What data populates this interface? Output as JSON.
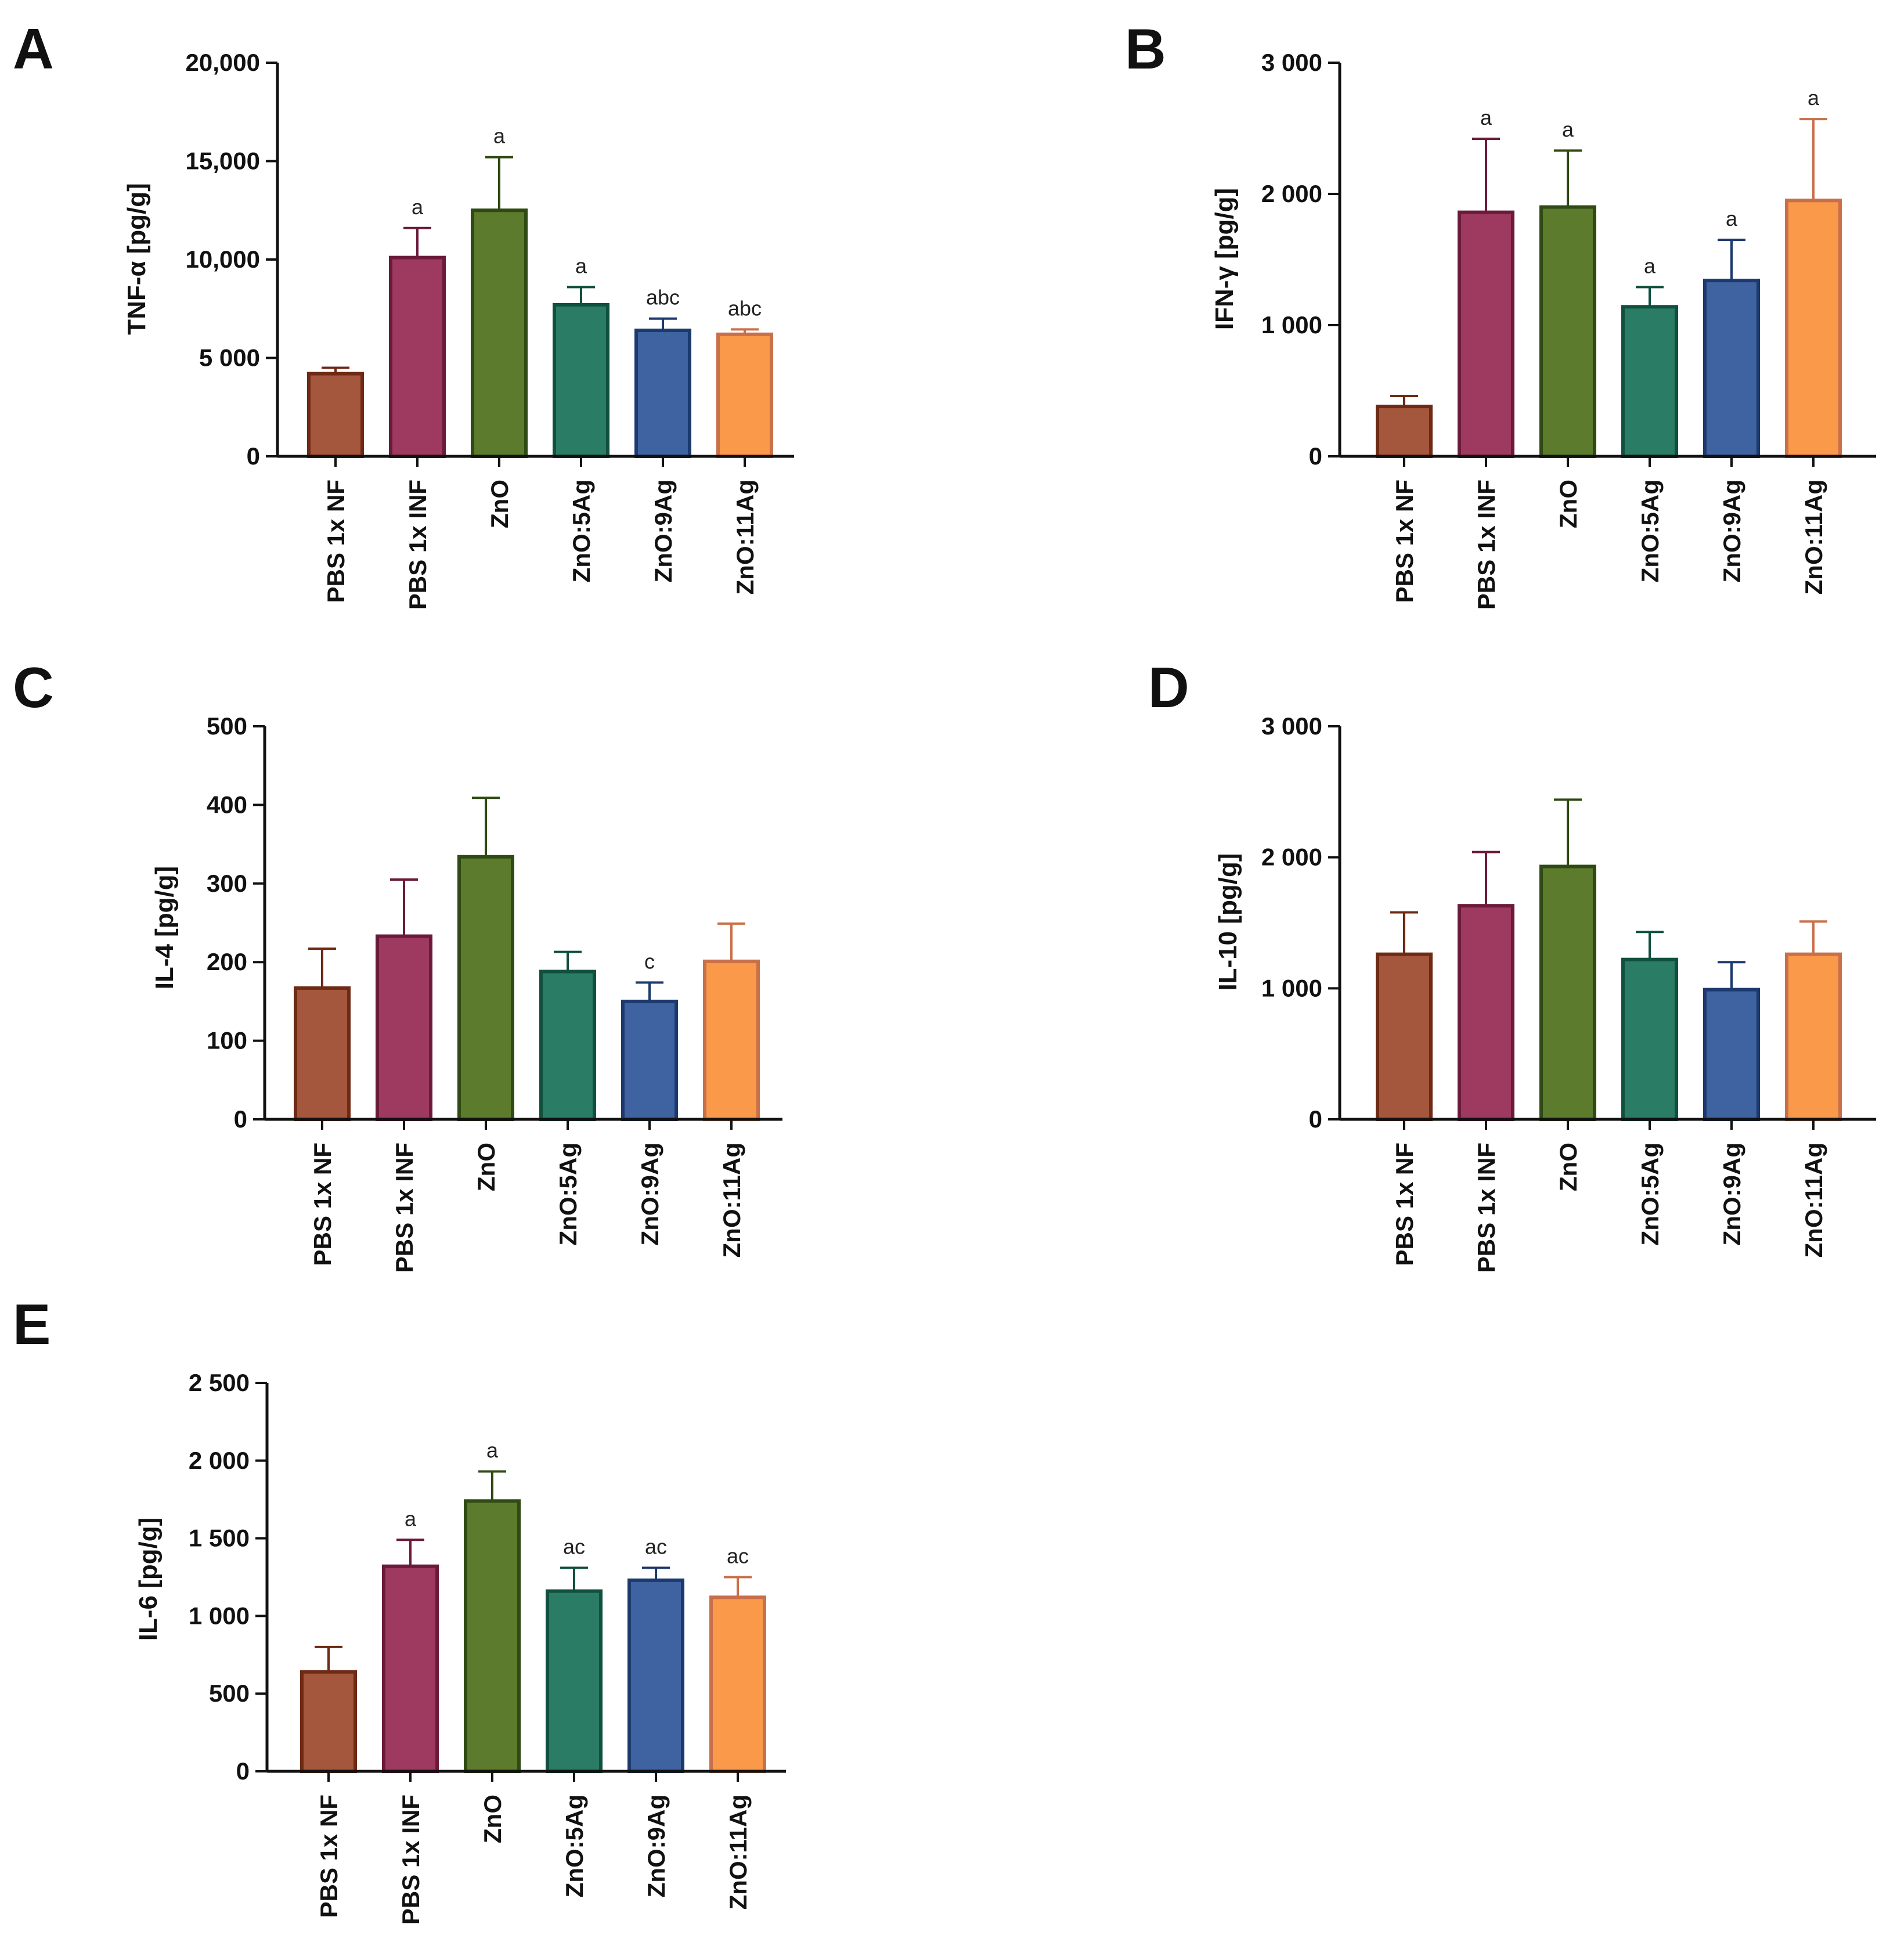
{
  "chart_data": [
    {
      "panel": "A",
      "type": "bar",
      "ylabel": "TNF-α [pg/g]",
      "ylim": [
        0,
        20000
      ],
      "yticks": [
        0,
        5000,
        10000,
        15000,
        20000
      ],
      "ytick_labels": [
        "0",
        "5 000",
        "10,000",
        "15,000",
        "20,000"
      ],
      "categories": [
        "PBS 1x NF",
        "PBS 1x INF",
        "ZnO",
        "ZnO:5Ag",
        "ZnO:9Ag",
        "ZnO:11Ag"
      ],
      "values": [
        4200,
        10100,
        12500,
        7700,
        6400,
        6200
      ],
      "errors": [
        300,
        1500,
        2700,
        900,
        600,
        250
      ],
      "annotations": [
        "",
        "a",
        "a",
        "a",
        "abc",
        "abc"
      ]
    },
    {
      "panel": "B",
      "type": "bar",
      "ylabel": "IFN-γ [pg/g]",
      "ylim": [
        0,
        3000
      ],
      "yticks": [
        0,
        1000,
        2000,
        3000
      ],
      "ytick_labels": [
        "0",
        "1 000",
        "2 000",
        "3 000"
      ],
      "categories": [
        "PBS 1x NF",
        "PBS 1x INF",
        "ZnO",
        "ZnO:5Ag",
        "ZnO:9Ag",
        "ZnO:11Ag"
      ],
      "values": [
        380,
        1860,
        1900,
        1140,
        1340,
        1950
      ],
      "errors": [
        80,
        560,
        430,
        150,
        310,
        620
      ],
      "annotations": [
        "",
        "a",
        "a",
        "a",
        "a",
        "a"
      ]
    },
    {
      "panel": "C",
      "type": "bar",
      "ylabel": "IL-4 [pg/g]",
      "ylim": [
        0,
        500
      ],
      "yticks": [
        0,
        100,
        200,
        300,
        400,
        500
      ],
      "ytick_labels": [
        "0",
        "100",
        "200",
        "300",
        "400",
        "500"
      ],
      "categories": [
        "PBS 1x NF",
        "PBS 1x INF",
        "ZnO",
        "ZnO:5Ag",
        "ZnO:9Ag",
        "ZnO:11Ag"
      ],
      "values": [
        167,
        233,
        334,
        188,
        150,
        201
      ],
      "errors": [
        50,
        72,
        75,
        25,
        24,
        48
      ],
      "annotations": [
        "",
        "",
        "",
        "",
        "c",
        ""
      ]
    },
    {
      "panel": "D",
      "type": "bar",
      "ylabel": "IL-10 [pg/g]",
      "ylim": [
        0,
        3000
      ],
      "yticks": [
        0,
        1000,
        2000,
        3000
      ],
      "ytick_labels": [
        "0",
        "1 000",
        "2 000",
        "3 000"
      ],
      "categories": [
        "PBS 1x NF",
        "PBS 1x INF",
        "ZnO",
        "ZnO:5Ag",
        "ZnO:9Ag",
        "ZnO:11Ag"
      ],
      "values": [
        1260,
        1630,
        1930,
        1220,
        990,
        1260
      ],
      "errors": [
        320,
        410,
        510,
        210,
        210,
        250
      ],
      "annotations": [
        "",
        "",
        "",
        "",
        "",
        ""
      ]
    },
    {
      "panel": "E",
      "type": "bar",
      "ylabel": "IL-6 [pg/g]",
      "ylim": [
        0,
        2500
      ],
      "yticks": [
        0,
        500,
        1000,
        1500,
        2000,
        2500
      ],
      "ytick_labels": [
        "0",
        "500",
        "1 000",
        "1 500",
        "2 000",
        "2 500"
      ],
      "categories": [
        "PBS 1x NF",
        "PBS 1x INF",
        "ZnO",
        "ZnO:5Ag",
        "ZnO:9Ag",
        "ZnO:11Ag"
      ],
      "values": [
        640,
        1320,
        1740,
        1160,
        1230,
        1120
      ],
      "errors": [
        160,
        170,
        190,
        150,
        80,
        130
      ],
      "annotations": [
        "",
        "a",
        "a",
        "ac",
        "ac",
        "ac"
      ]
    }
  ],
  "colors": {
    "fills": [
      "#a5573d",
      "#9e395f",
      "#5d7b2c",
      "#2b7c64",
      "#3f62a0",
      "#f99949"
    ],
    "strokes": [
      "#6e2a14",
      "#6b1a3a",
      "#2f4a12",
      "#10503e",
      "#1d3a6e",
      "#c8704a"
    ],
    "axis": "#111111"
  }
}
